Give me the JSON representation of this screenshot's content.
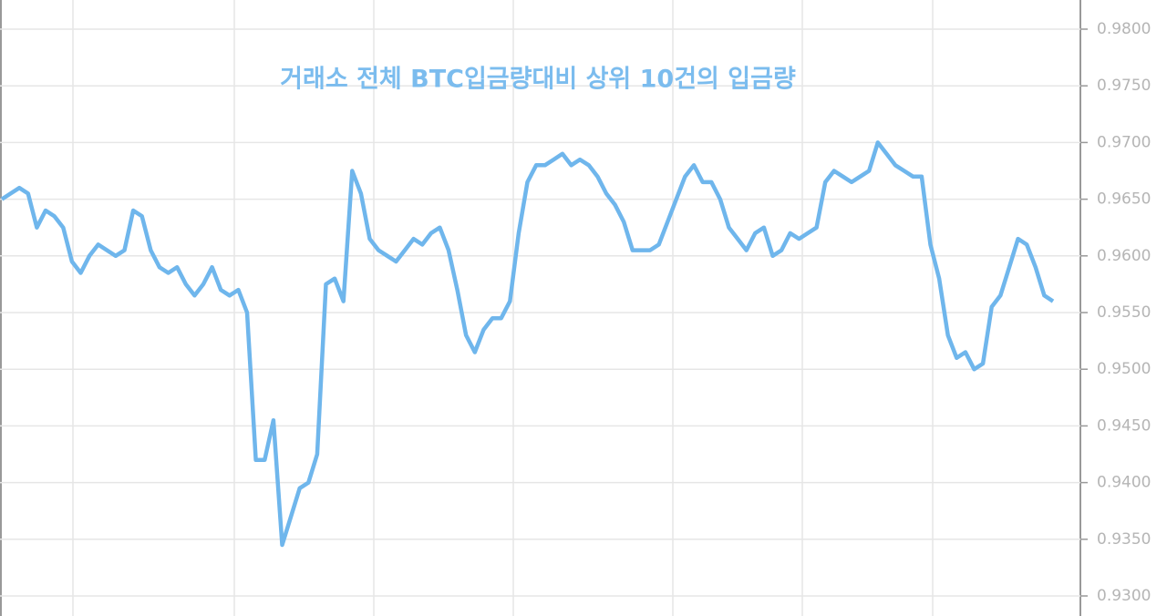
{
  "chart_data": {
    "type": "line",
    "title": "거래소 전체 BTC입금량대비 상위 10건의 입금량",
    "series": [
      {
        "color": "#6fb6ec",
        "values": [
          0.965,
          0.9655,
          0.966,
          0.9655,
          0.9625,
          0.964,
          0.9635,
          0.9625,
          0.9595,
          0.9585,
          0.96,
          0.961,
          0.9605,
          0.96,
          0.9605,
          0.964,
          0.9635,
          0.9605,
          0.959,
          0.9585,
          0.959,
          0.9575,
          0.9565,
          0.9575,
          0.959,
          0.957,
          0.9565,
          0.957,
          0.955,
          0.942,
          0.942,
          0.9455,
          0.9345,
          0.937,
          0.9395,
          0.94,
          0.9425,
          0.9575,
          0.958,
          0.956,
          0.9675,
          0.9655,
          0.9615,
          0.9605,
          0.96,
          0.9595,
          0.9605,
          0.9615,
          0.961,
          0.962,
          0.9625,
          0.9605,
          0.957,
          0.953,
          0.9515,
          0.9535,
          0.9545,
          0.9545,
          0.956,
          0.962,
          0.9665,
          0.968,
          0.968,
          0.9685,
          0.969,
          0.968,
          0.9685,
          0.968,
          0.967,
          0.9655,
          0.9645,
          0.963,
          0.9605,
          0.9605,
          0.9605,
          0.961,
          0.963,
          0.965,
          0.967,
          0.968,
          0.9665,
          0.9665,
          0.965,
          0.9625,
          0.9615,
          0.9605,
          0.962,
          0.9625,
          0.96,
          0.9605,
          0.962,
          0.9615,
          0.962,
          0.9625,
          0.9665,
          0.9675,
          0.967,
          0.9665,
          0.967,
          0.9675,
          0.97,
          0.969,
          0.968,
          0.9675,
          0.967,
          0.967,
          0.961,
          0.958,
          0.953,
          0.951,
          0.9515,
          0.95,
          0.9505,
          0.9555,
          0.9565,
          0.959,
          0.9615,
          0.961,
          0.959,
          0.9565,
          0.956
        ]
      }
    ],
    "ylim": [
      0.93,
      0.98
    ],
    "yticks": [
      {
        "value": 0.93,
        "label": "0.9300"
      },
      {
        "value": 0.935,
        "label": "0.9350"
      },
      {
        "value": 0.94,
        "label": "0.9400"
      },
      {
        "value": 0.945,
        "label": "0.9450"
      },
      {
        "value": 0.95,
        "label": "0.9500"
      },
      {
        "value": 0.955,
        "label": "0.9550"
      },
      {
        "value": 0.96,
        "label": "0.9600"
      },
      {
        "value": 0.965,
        "label": "0.9650"
      },
      {
        "value": 0.97,
        "label": "0.9700"
      },
      {
        "value": 0.975,
        "label": "0.9750"
      },
      {
        "value": 0.98,
        "label": "0.9800"
      }
    ],
    "grid": true
  }
}
